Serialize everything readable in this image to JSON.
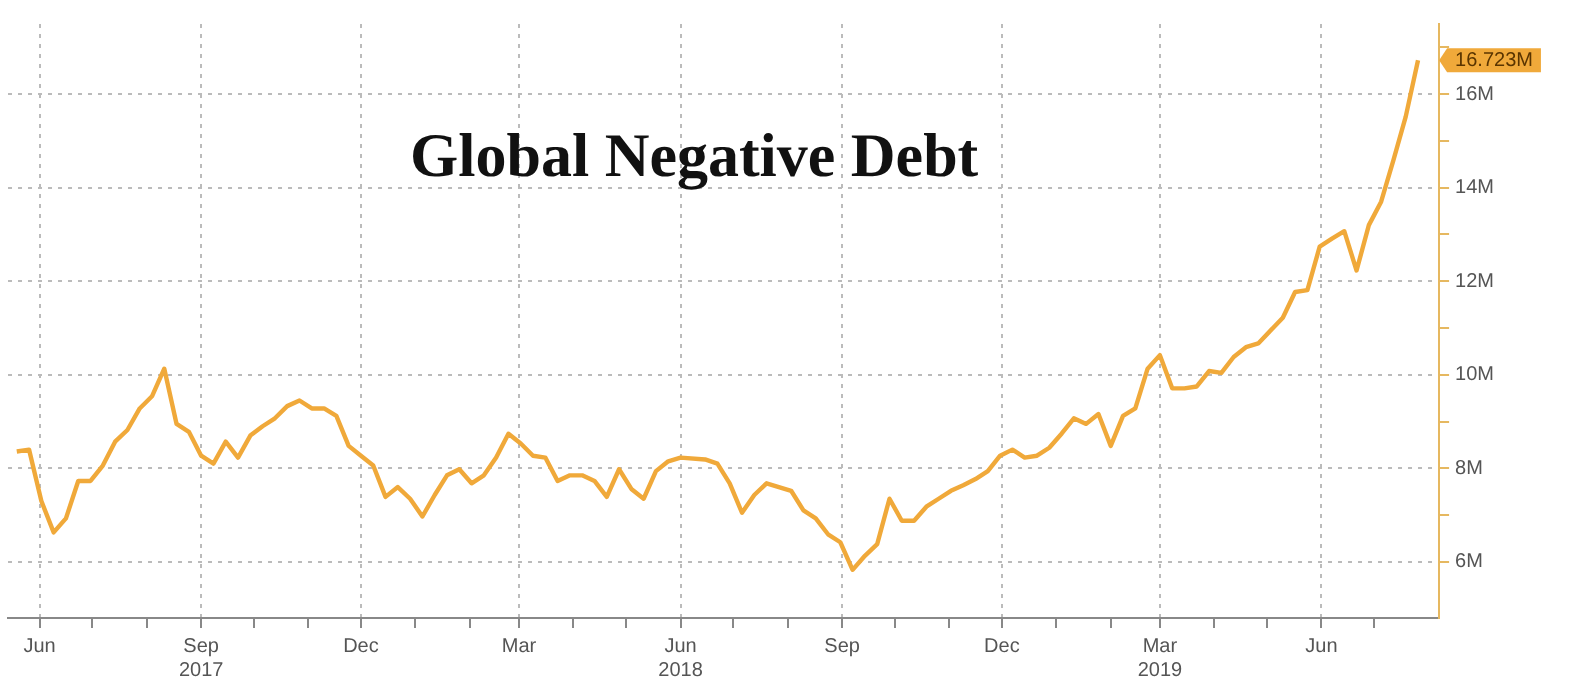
{
  "chart_data": {
    "type": "line",
    "title": "Global Negative Debt",
    "x": [
      "2017-05-19",
      "2017-05-26",
      "2017-06-02",
      "2017-06-09",
      "2017-06-16",
      "2017-06-23",
      "2017-06-30",
      "2017-07-07",
      "2017-07-14",
      "2017-07-21",
      "2017-07-28",
      "2017-08-04",
      "2017-08-11",
      "2017-08-18",
      "2017-08-25",
      "2017-09-01",
      "2017-09-08",
      "2017-09-15",
      "2017-09-22",
      "2017-09-29",
      "2017-10-06",
      "2017-10-13",
      "2017-10-20",
      "2017-10-27",
      "2017-11-03",
      "2017-11-10",
      "2017-11-17",
      "2017-11-24",
      "2017-12-01",
      "2017-12-08",
      "2017-12-15",
      "2017-12-22",
      "2017-12-29",
      "2018-01-05",
      "2018-01-12",
      "2018-01-19",
      "2018-01-26",
      "2018-02-02",
      "2018-02-09",
      "2018-02-16",
      "2018-02-23",
      "2018-03-02",
      "2018-03-09",
      "2018-03-16",
      "2018-03-23",
      "2018-03-30",
      "2018-04-06",
      "2018-04-13",
      "2018-04-20",
      "2018-04-27",
      "2018-05-04",
      "2018-05-11",
      "2018-05-18",
      "2018-05-25",
      "2018-06-01",
      "2018-06-15",
      "2018-06-22",
      "2018-06-29",
      "2018-07-06",
      "2018-07-13",
      "2018-07-20",
      "2018-07-27",
      "2018-08-03",
      "2018-08-10",
      "2018-08-17",
      "2018-08-24",
      "2018-08-31",
      "2018-09-07",
      "2018-09-14",
      "2018-09-21",
      "2018-09-28",
      "2018-10-05",
      "2018-10-12",
      "2018-10-19",
      "2018-10-26",
      "2018-11-02",
      "2018-11-09",
      "2018-11-16",
      "2018-11-23",
      "2018-11-30",
      "2018-12-07",
      "2018-12-14",
      "2018-12-21",
      "2018-12-28",
      "2019-01-04",
      "2019-01-11",
      "2019-01-18",
      "2019-01-25",
      "2019-02-01",
      "2019-02-08",
      "2019-02-15",
      "2019-02-22",
      "2019-03-01",
      "2019-03-08",
      "2019-03-15",
      "2019-03-22",
      "2019-03-29",
      "2019-04-05",
      "2019-04-12",
      "2019-04-19",
      "2019-04-26",
      "2019-05-10",
      "2019-05-17",
      "2019-05-24",
      "2019-05-31",
      "2019-06-07",
      "2019-06-14",
      "2019-06-21",
      "2019-06-28",
      "2019-07-05",
      "2019-07-12",
      "2019-07-19",
      "2019-07-26"
    ],
    "series": [
      {
        "color": "#f0a93a",
        "values": [
          8.36,
          8.4,
          7.3,
          6.63,
          6.93,
          7.73,
          7.73,
          8.06,
          8.57,
          8.82,
          9.28,
          9.54,
          10.13,
          8.95,
          8.78,
          8.27,
          8.1,
          8.57,
          8.23,
          8.7,
          8.9,
          9.07,
          9.33,
          9.45,
          9.28,
          9.28,
          9.12,
          8.48,
          8.27,
          8.06,
          7.39,
          7.6,
          7.35,
          6.97,
          7.43,
          7.85,
          7.98,
          7.68,
          7.85,
          8.23,
          8.74,
          8.53,
          8.27,
          8.23,
          7.73,
          7.85,
          7.85,
          7.73,
          7.39,
          7.98,
          7.56,
          7.35,
          7.94,
          8.15,
          8.23,
          8.19,
          8.1,
          7.68,
          7.05,
          7.43,
          7.68,
          7.6,
          7.52,
          7.1,
          6.93,
          6.59,
          6.42,
          5.83,
          6.13,
          6.38,
          7.35,
          6.88,
          6.88,
          7.18,
          7.35,
          7.52,
          7.64,
          7.77,
          7.94,
          8.27,
          8.4,
          8.23,
          8.27,
          8.44,
          8.74,
          9.07,
          8.95,
          9.16,
          8.48,
          9.12,
          9.28,
          10.13,
          10.42,
          9.71,
          9.71,
          9.75,
          10.08,
          10.04,
          10.38,
          10.59,
          10.67,
          11.22,
          11.77,
          11.81,
          12.74,
          12.91,
          13.07,
          12.23,
          13.2,
          13.7,
          14.59,
          15.52,
          16.723
        ]
      }
    ],
    "xlim": [
      "2017-05-14",
      "2019-08-07"
    ],
    "xticks": [
      {
        "value": "2017-06-01",
        "label": "Jun"
      },
      {
        "value": "2017-07-01",
        "label": null
      },
      {
        "value": "2017-08-01",
        "label": null
      },
      {
        "value": "2017-09-01",
        "label": "Sep\n2017"
      },
      {
        "value": "2017-10-01",
        "label": null
      },
      {
        "value": "2017-11-01",
        "label": null
      },
      {
        "value": "2017-12-01",
        "label": "Dec"
      },
      {
        "value": "2018-01-01",
        "label": null
      },
      {
        "value": "2018-02-01",
        "label": null
      },
      {
        "value": "2018-03-01",
        "label": "Mar"
      },
      {
        "value": "2018-04-01",
        "label": null
      },
      {
        "value": "2018-05-01",
        "label": null
      },
      {
        "value": "2018-06-01",
        "label": "Jun\n2018"
      },
      {
        "value": "2018-07-01",
        "label": null
      },
      {
        "value": "2018-08-01",
        "label": null
      },
      {
        "value": "2018-09-01",
        "label": "Sep"
      },
      {
        "value": "2018-10-01",
        "label": null
      },
      {
        "value": "2018-11-01",
        "label": null
      },
      {
        "value": "2018-12-01",
        "label": "Dec"
      },
      {
        "value": "2019-01-01",
        "label": null
      },
      {
        "value": "2019-02-01",
        "label": null
      },
      {
        "value": "2019-03-01",
        "label": "Mar\n2019"
      },
      {
        "value": "2019-04-01",
        "label": null
      },
      {
        "value": "2019-05-01",
        "label": null
      },
      {
        "value": "2019-06-01",
        "label": "Jun"
      },
      {
        "value": "2019-07-01",
        "label": null
      }
    ],
    "ylim": [
      4.8,
      17.5
    ],
    "yticks": [
      {
        "value": 6,
        "label": "6M"
      },
      {
        "value": 7,
        "label": null
      },
      {
        "value": 8,
        "label": "8M"
      },
      {
        "value": 9,
        "label": null
      },
      {
        "value": 10,
        "label": "10M"
      },
      {
        "value": 11,
        "label": null
      },
      {
        "value": 12,
        "label": "12M"
      },
      {
        "value": 13,
        "label": null
      },
      {
        "value": 14,
        "label": "14M"
      },
      {
        "value": 15,
        "label": null
      },
      {
        "value": 16,
        "label": "16M"
      },
      {
        "value": 17,
        "label": null
      }
    ],
    "annotations": [
      {
        "text": "16.723M",
        "x": "2019-07-26",
        "y": 16.723
      }
    ],
    "grid": true,
    "legend": false,
    "marker": "none",
    "line_style": "solid"
  }
}
